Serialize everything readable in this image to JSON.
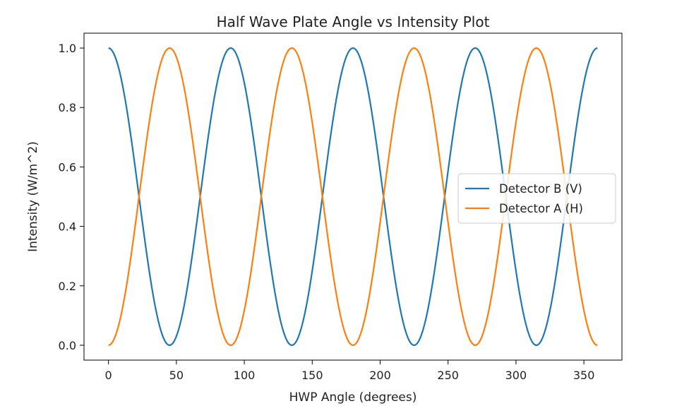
{
  "chart_data": {
    "type": "line",
    "title": "Half Wave Plate Angle vs Intensity Plot",
    "xlabel": "HWP Angle (degrees)",
    "ylabel": "Intensity (W/m^2)",
    "xlim": [
      -18,
      378
    ],
    "ylim": [
      -0.05,
      1.05
    ],
    "x_ticks": [
      0,
      50,
      100,
      150,
      200,
      250,
      300,
      350
    ],
    "y_ticks": [
      0.0,
      0.2,
      0.4,
      0.6,
      0.8,
      1.0
    ],
    "x_tick_labels": [
      "0",
      "50",
      "100",
      "150",
      "200",
      "250",
      "300",
      "350"
    ],
    "y_tick_labels": [
      "0.0",
      "0.2",
      "0.4",
      "0.6",
      "0.8",
      "1.0"
    ],
    "grid": false,
    "legend_position": "center-right",
    "x": [
      0,
      11.25,
      22.5,
      33.75,
      45,
      56.25,
      67.5,
      78.75,
      90,
      101.25,
      112.5,
      123.75,
      135,
      146.25,
      157.5,
      168.75,
      180,
      191.25,
      202.5,
      213.75,
      225,
      236.25,
      247.5,
      258.75,
      270,
      281.25,
      292.5,
      303.75,
      315,
      326.25,
      337.5,
      348.75,
      360
    ],
    "series": [
      {
        "name": "Detector B (V)",
        "color": "#1f77b4",
        "values": [
          1.0,
          0.854,
          0.5,
          0.146,
          0.0,
          0.146,
          0.5,
          0.854,
          1.0,
          0.854,
          0.5,
          0.146,
          0.0,
          0.146,
          0.5,
          0.854,
          1.0,
          0.854,
          0.5,
          0.146,
          0.0,
          0.146,
          0.5,
          0.854,
          1.0,
          0.854,
          0.5,
          0.146,
          0.0,
          0.146,
          0.5,
          0.854,
          1.0
        ]
      },
      {
        "name": "Detector A (H)",
        "color": "#ff7f0e",
        "values": [
          0.0,
          0.146,
          0.5,
          0.854,
          1.0,
          0.854,
          0.5,
          0.146,
          0.0,
          0.146,
          0.5,
          0.854,
          1.0,
          0.854,
          0.5,
          0.146,
          0.0,
          0.146,
          0.5,
          0.854,
          1.0,
          0.854,
          0.5,
          0.146,
          0.0,
          0.146,
          0.5,
          0.854,
          1.0,
          0.854,
          0.5,
          0.146,
          0.0
        ]
      }
    ]
  }
}
